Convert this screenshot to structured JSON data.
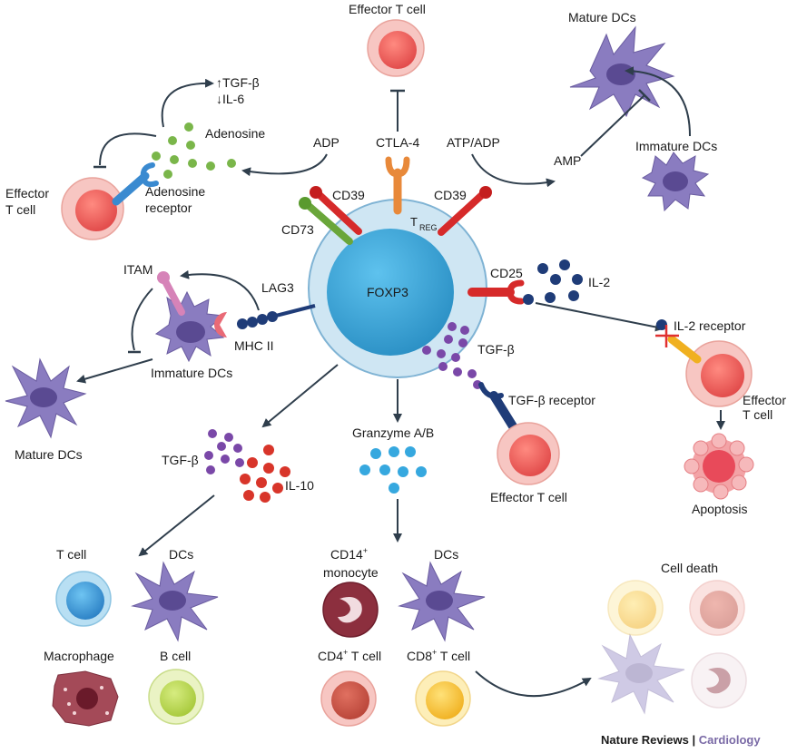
{
  "labels": {
    "effector_t_top": "Effector T cell",
    "mature_dcs_top": "Mature DCs",
    "tgf_up": "↑TGF-β",
    "il6_down": "↓IL-6",
    "adenosine": "Adenosine",
    "adp": "ADP",
    "ctla4": "CTLA-4",
    "atp_adp": "ATP/ADP",
    "amp": "AMP",
    "immature_dcs_right": "Immature DCs",
    "effector_t_left_1": "Effector",
    "effector_t_left_2": "T cell",
    "adenosine_receptor_1": "Adenosine",
    "adenosine_receptor_2": "receptor",
    "cd39_left": "CD39",
    "cd39_right": "CD39",
    "cd73": "CD73",
    "treg": "T",
    "treg_sub": "REG",
    "foxp3": "FOXP3",
    "cd25": "CD25",
    "il2": "IL-2",
    "itam": "ITAM",
    "lag3": "LAG3",
    "mhc2": "MHC II",
    "immature_dcs_left": "Immature DCs",
    "mature_dcs_left": "Mature DCs",
    "il2_receptor": "IL-2 receptor",
    "tgf_beta_center": "TGF-β",
    "tgf_beta_receptor": "TGF-β receptor",
    "effector_t_right_1": "Effector",
    "effector_t_right_2": "T cell",
    "apoptosis": "Apoptosis",
    "granzyme": "Granzyme A/B",
    "effector_t_bottom": "Effector T cell",
    "tgf_beta_left": "TGF-β",
    "il10": "IL-10",
    "t_cell": "T cell",
    "dcs_left": "DCs",
    "macrophage": "Macrophage",
    "b_cell": "B cell",
    "cd14_monocyte": "CD14",
    "cd14_sup": "+",
    "cd14_monocyte_2": "monocyte",
    "dcs_mid": "DCs",
    "cd4_t": "CD4",
    "cd4_sup": "+",
    "cd4_t_2": " T cell",
    "cd8_t": "CD8",
    "cd8_sup": "+",
    "cd8_t_2": " T cell",
    "cell_death": "Cell death"
  },
  "footer": {
    "journal": "Nature Reviews",
    "separator": " | ",
    "section": "Cardiology"
  },
  "colors": {
    "treg_outer": "#cfe6f3",
    "treg_nucleus": "#3da8d8",
    "effector_outer": "#f7c6c2",
    "effector_inner": "#e85a5a",
    "dc_purple": "#8a7cc0",
    "dc_nucleus": "#5a4a92",
    "adenosine_green": "#7ab64a",
    "il2_navy": "#1f3c78",
    "tgf_purple": "#7a48a8",
    "il10_red": "#d8352a",
    "granzyme_blue": "#36a8df",
    "arrow": "#2f3e4c",
    "journal_text": "#1a1a1a",
    "section_text": "#7a6aa6"
  }
}
